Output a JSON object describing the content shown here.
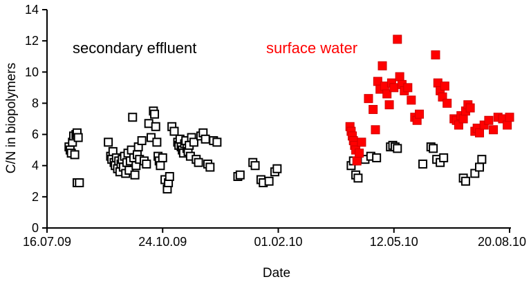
{
  "chart_data": {
    "type": "scatter",
    "title": "",
    "xlabel": "Date",
    "ylabel": "C/N in biopolymers",
    "grid": false,
    "legend_position": "inline-annotations",
    "xlim_days": [
      0,
      400
    ],
    "x_tick_days": [
      0,
      100,
      200,
      300,
      400
    ],
    "x_tick_labels": [
      "16.07.09",
      "24.10.09",
      "01.02.10",
      "12.05.10",
      "20.08.10"
    ],
    "ylim": [
      0,
      14
    ],
    "y_ticks": [
      0,
      2,
      4,
      6,
      8,
      10,
      12,
      14
    ],
    "annotations": [
      {
        "text": "secondary effluent",
        "color": "#000000"
      },
      {
        "text": "surface water",
        "color": "#ff0000"
      }
    ],
    "series": [
      {
        "name": "secondary effluent",
        "marker": "open-square",
        "fill": "#ffffff",
        "stroke": "#000000",
        "points": [
          [
            19,
            5.2
          ],
          [
            20,
            5.0
          ],
          [
            21,
            4.8
          ],
          [
            22,
            5.5
          ],
          [
            23,
            5.9
          ],
          [
            24,
            4.7
          ],
          [
            25,
            6.0
          ],
          [
            26,
            6.1
          ],
          [
            27,
            5.8
          ],
          [
            26,
            2.9
          ],
          [
            28,
            2.9
          ],
          [
            53,
            5.5
          ],
          [
            55,
            4.6
          ],
          [
            56,
            4.4
          ],
          [
            57,
            4.9
          ],
          [
            58,
            4.2
          ],
          [
            59,
            4.0
          ],
          [
            60,
            4.5
          ],
          [
            61,
            3.8
          ],
          [
            62,
            4.3
          ],
          [
            63,
            3.6
          ],
          [
            64,
            4.1
          ],
          [
            65,
            4.4
          ],
          [
            66,
            3.9
          ],
          [
            67,
            4.6
          ],
          [
            68,
            3.5
          ],
          [
            69,
            4.2
          ],
          [
            70,
            4.8
          ],
          [
            71,
            3.7
          ],
          [
            72,
            4.3
          ],
          [
            73,
            5.0
          ],
          [
            74,
            7.1
          ],
          [
            75,
            4.5
          ],
          [
            76,
            3.4
          ],
          [
            77,
            4.0
          ],
          [
            78,
            4.7
          ],
          [
            79,
            5.2
          ],
          [
            80,
            4.4
          ],
          [
            82,
            5.6
          ],
          [
            84,
            4.3
          ],
          [
            86,
            4.1
          ],
          [
            88,
            6.7
          ],
          [
            90,
            5.8
          ],
          [
            92,
            7.5
          ],
          [
            93,
            7.3
          ],
          [
            94,
            6.5
          ],
          [
            95,
            5.5
          ],
          [
            96,
            4.6
          ],
          [
            97,
            4.3
          ],
          [
            98,
            4.0
          ],
          [
            100,
            4.5
          ],
          [
            102,
            3.1
          ],
          [
            104,
            2.5
          ],
          [
            105,
            2.9
          ],
          [
            106,
            3.3
          ],
          [
            108,
            6.5
          ],
          [
            110,
            6.2
          ],
          [
            113,
            5.5
          ],
          [
            114,
            5.3
          ],
          [
            115,
            5.7
          ],
          [
            116,
            5.2
          ],
          [
            117,
            5.0
          ],
          [
            118,
            4.8
          ],
          [
            119,
            5.4
          ],
          [
            120,
            5.6
          ],
          [
            121,
            5.1
          ],
          [
            122,
            4.9
          ],
          [
            123,
            5.3
          ],
          [
            124,
            4.6
          ],
          [
            125,
            5.8
          ],
          [
            127,
            5.5
          ],
          [
            129,
            4.4
          ],
          [
            131,
            4.2
          ],
          [
            133,
            5.9
          ],
          [
            135,
            6.1
          ],
          [
            137,
            5.7
          ],
          [
            139,
            4.1
          ],
          [
            141,
            3.9
          ],
          [
            144,
            5.6
          ],
          [
            147,
            5.5
          ],
          [
            165,
            3.3
          ],
          [
            167,
            3.4
          ],
          [
            178,
            4.2
          ],
          [
            180,
            4.0
          ],
          [
            185,
            3.1
          ],
          [
            187,
            2.9
          ],
          [
            192,
            3.0
          ],
          [
            197,
            3.6
          ],
          [
            199,
            3.8
          ],
          [
            263,
            4.0
          ],
          [
            265,
            4.3
          ],
          [
            267,
            3.4
          ],
          [
            269,
            3.2
          ],
          [
            275,
            4.4
          ],
          [
            280,
            4.6
          ],
          [
            285,
            4.5
          ],
          [
            297,
            5.2
          ],
          [
            299,
            5.3
          ],
          [
            301,
            5.2
          ],
          [
            303,
            5.1
          ],
          [
            325,
            4.1
          ],
          [
            332,
            5.2
          ],
          [
            334,
            5.1
          ],
          [
            337,
            4.4
          ],
          [
            340,
            4.2
          ],
          [
            343,
            4.5
          ],
          [
            360,
            3.2
          ],
          [
            362,
            3.0
          ],
          [
            370,
            3.5
          ],
          [
            374,
            3.9
          ],
          [
            376,
            4.4
          ]
        ]
      },
      {
        "name": "surface water",
        "marker": "filled-square",
        "fill": "#ff0000",
        "stroke": "#d00000",
        "points": [
          [
            262,
            6.5
          ],
          [
            263,
            6.2
          ],
          [
            264,
            5.9
          ],
          [
            265,
            5.6
          ],
          [
            266,
            5.3
          ],
          [
            267,
            5.0
          ],
          [
            268,
            4.3
          ],
          [
            270,
            4.8
          ],
          [
            272,
            5.5
          ],
          [
            278,
            8.3
          ],
          [
            282,
            7.6
          ],
          [
            284,
            6.3
          ],
          [
            286,
            9.4
          ],
          [
            288,
            8.9
          ],
          [
            290,
            10.4
          ],
          [
            292,
            9.1
          ],
          [
            294,
            8.6
          ],
          [
            296,
            7.9
          ],
          [
            298,
            9.3
          ],
          [
            300,
            9.0
          ],
          [
            303,
            12.1
          ],
          [
            305,
            9.7
          ],
          [
            307,
            9.2
          ],
          [
            309,
            8.8
          ],
          [
            312,
            9.0
          ],
          [
            315,
            8.2
          ],
          [
            318,
            7.1
          ],
          [
            320,
            6.9
          ],
          [
            322,
            7.3
          ],
          [
            336,
            11.1
          ],
          [
            338,
            9.3
          ],
          [
            340,
            8.8
          ],
          [
            342,
            8.4
          ],
          [
            344,
            9.1
          ],
          [
            346,
            8.0
          ],
          [
            352,
            7.0
          ],
          [
            354,
            6.9
          ],
          [
            356,
            6.6
          ],
          [
            358,
            7.2
          ],
          [
            360,
            7.0
          ],
          [
            362,
            7.5
          ],
          [
            364,
            7.9
          ],
          [
            366,
            7.7
          ],
          [
            370,
            6.2
          ],
          [
            372,
            6.4
          ],
          [
            374,
            6.1
          ],
          [
            378,
            6.6
          ],
          [
            382,
            6.9
          ],
          [
            386,
            6.3
          ],
          [
            390,
            7.1
          ],
          [
            394,
            7.0
          ],
          [
            398,
            6.6
          ],
          [
            400,
            7.1
          ]
        ]
      }
    ]
  }
}
